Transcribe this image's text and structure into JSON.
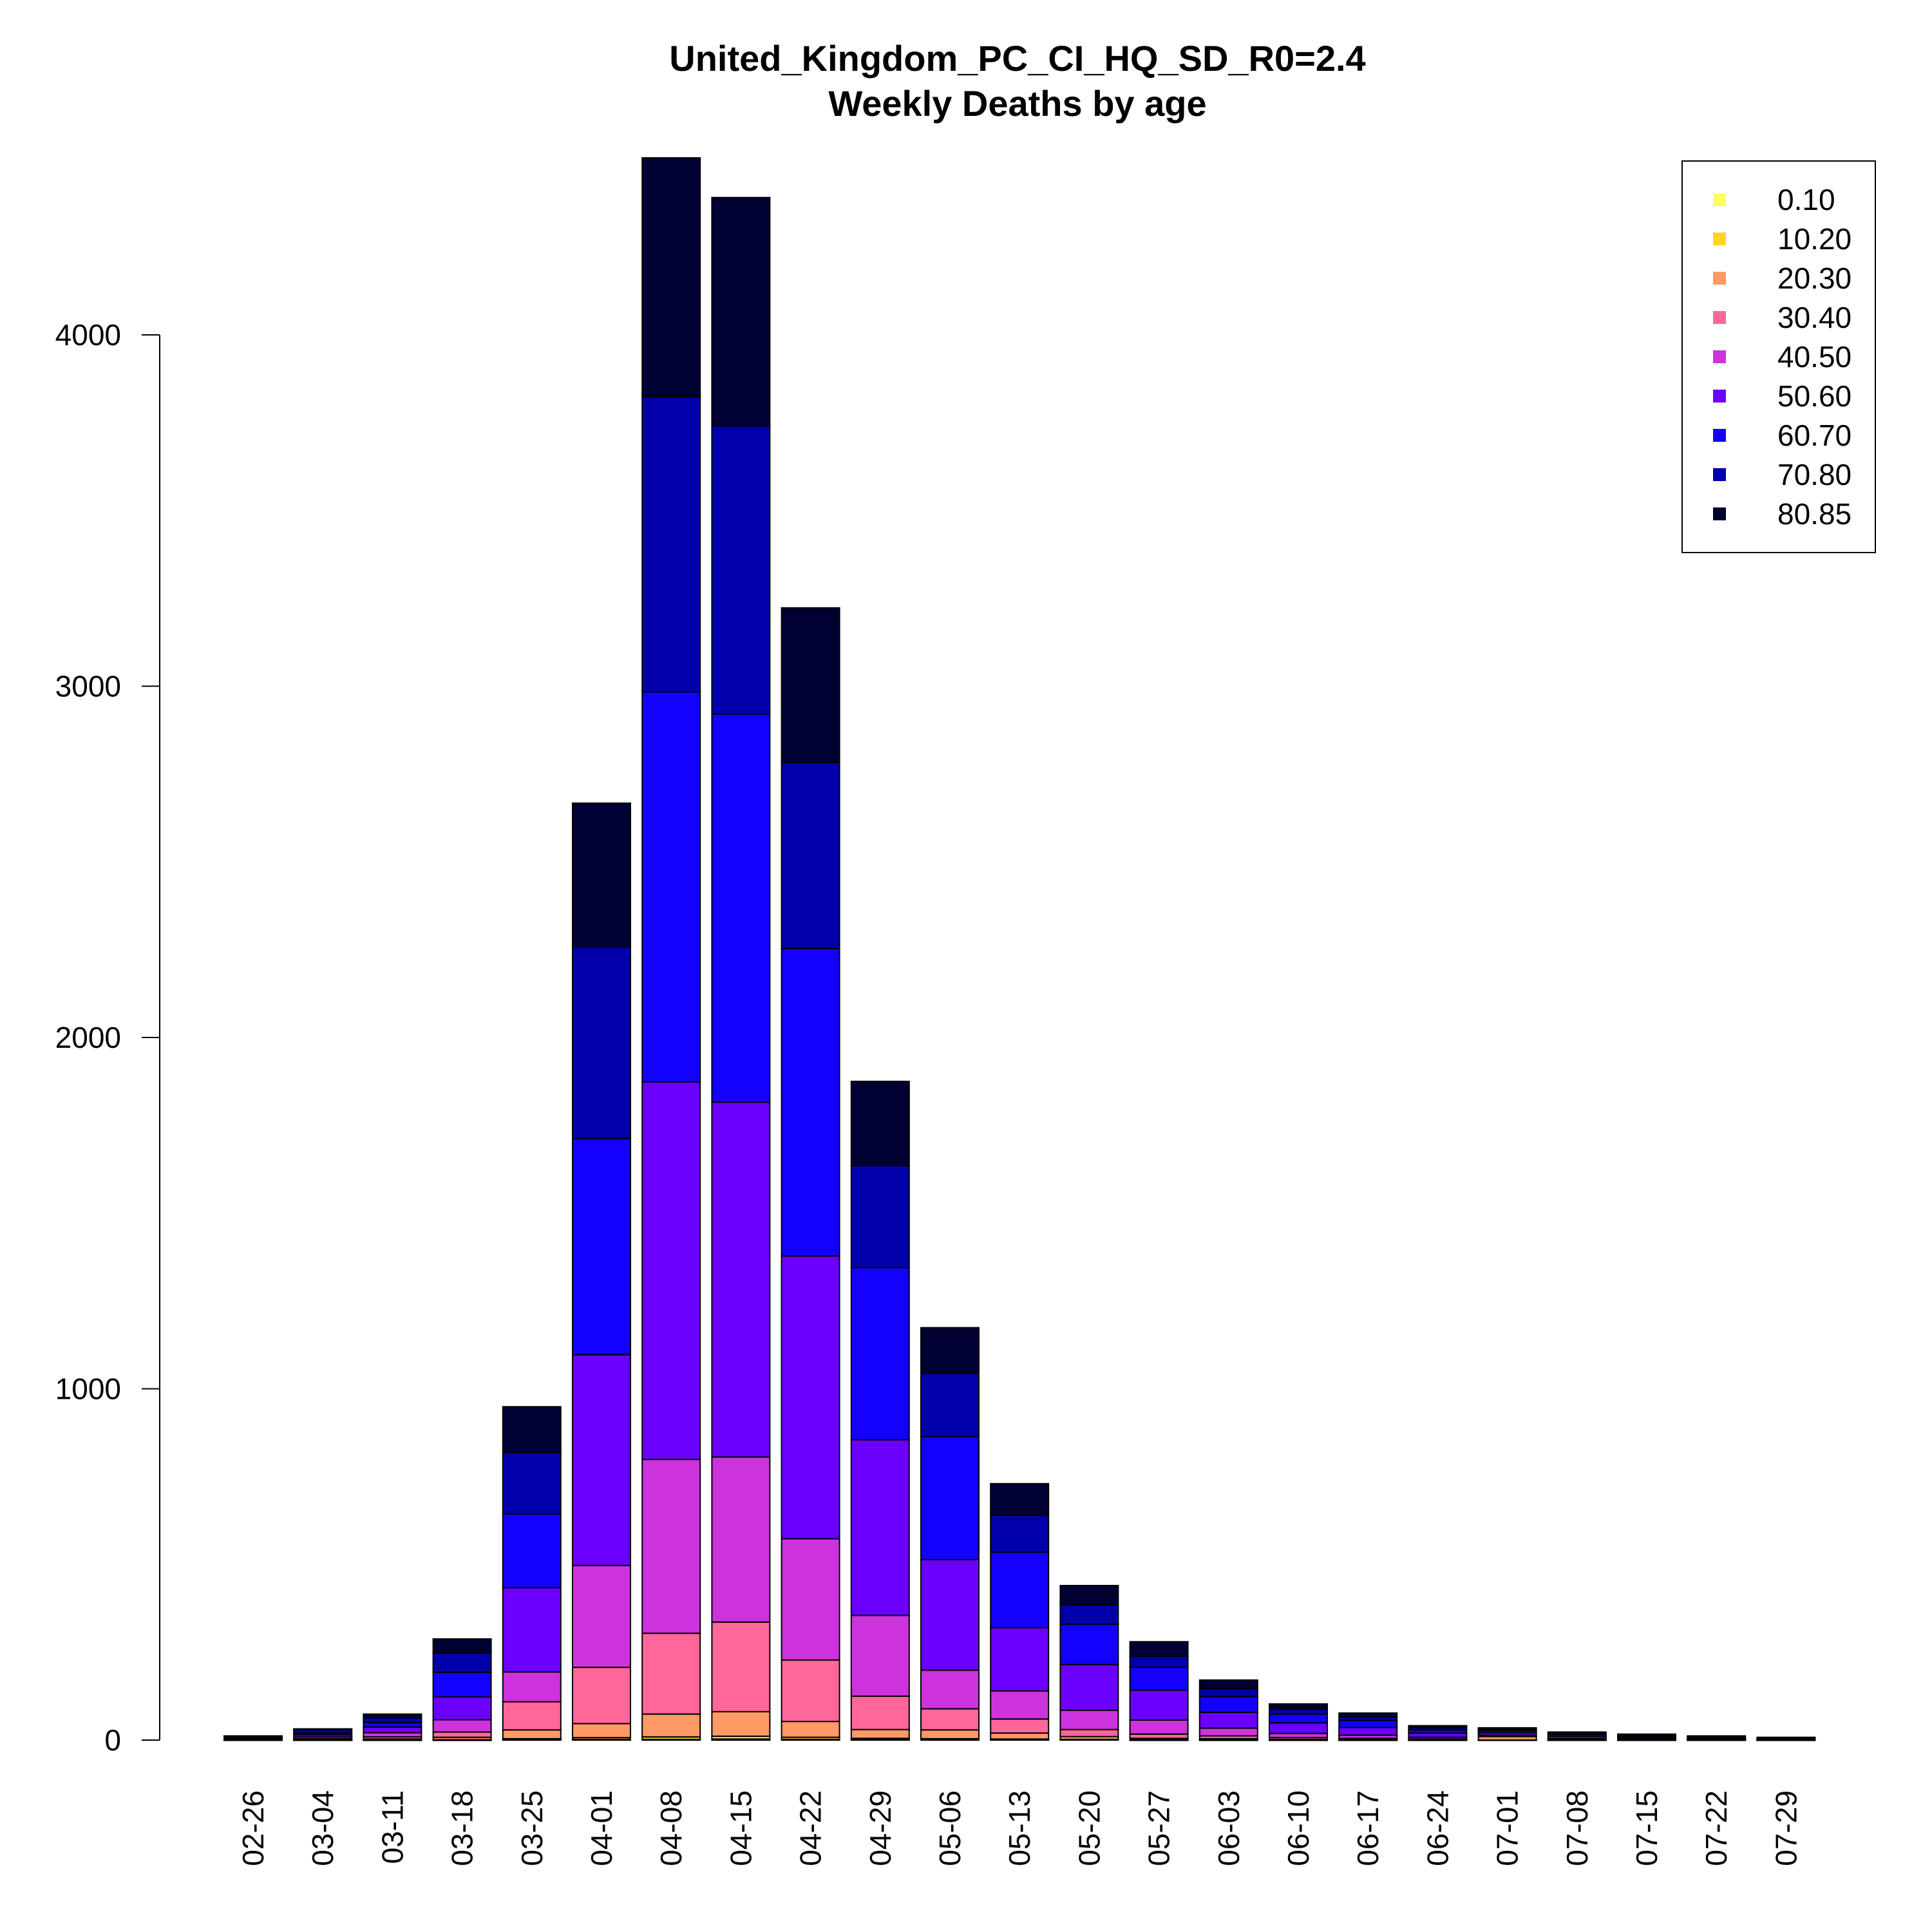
{
  "chart_data": {
    "type": "bar",
    "stacked": true,
    "title": "United_Kingdom_PC_CI_HQ_SD_R0=2.4",
    "subtitle": "Weekly Deaths by age",
    "xlabel": "",
    "ylabel": "",
    "ylim": [
      0,
      4500
    ],
    "yticks": [
      0,
      1000,
      2000,
      3000,
      4000
    ],
    "grid": false,
    "legend_position": "top-right",
    "categories": [
      "02-26",
      "03-04",
      "03-11",
      "03-18",
      "03-25",
      "04-01",
      "04-08",
      "04-15",
      "04-22",
      "04-29",
      "05-06",
      "05-13",
      "05-20",
      "05-27",
      "06-03",
      "06-10",
      "06-17",
      "06-24",
      "07-01",
      "07-08",
      "07-15",
      "07-22",
      "07-29"
    ],
    "series": [
      {
        "name": "0.10",
        "color": "#FFFF60",
        "values": [
          0,
          0,
          0,
          0,
          1,
          2,
          2,
          3,
          2,
          1,
          1,
          1,
          1,
          0,
          0,
          0,
          0,
          0,
          0,
          0,
          0,
          0,
          0
        ]
      },
      {
        "name": "10.20",
        "color": "#FFD426",
        "values": [
          0,
          0,
          0,
          1,
          3,
          5,
          7,
          8,
          6,
          4,
          3,
          2,
          1,
          1,
          1,
          0,
          0,
          0,
          0,
          0,
          0,
          0,
          0
        ]
      },
      {
        "name": "20.30",
        "color": "#FF9966",
        "values": [
          0,
          1,
          3,
          7,
          25,
          40,
          65,
          70,
          45,
          25,
          25,
          17,
          8,
          4,
          3,
          2,
          1,
          1,
          10,
          0,
          0,
          0,
          0
        ]
      },
      {
        "name": "30.40",
        "color": "#FF6699",
        "values": [
          1,
          3,
          6,
          15,
          80,
          160,
          230,
          255,
          175,
          95,
          60,
          40,
          20,
          12,
          8,
          5,
          4,
          2,
          1,
          2,
          1,
          1,
          0
        ]
      },
      {
        "name": "40.50",
        "color": "#CC33DD",
        "values": [
          2,
          5,
          12,
          35,
          85,
          290,
          495,
          470,
          345,
          230,
          110,
          80,
          55,
          40,
          22,
          12,
          9,
          5,
          3,
          3,
          2,
          1,
          1
        ]
      },
      {
        "name": "50.60",
        "color": "#6B00FF",
        "values": [
          3,
          6,
          16,
          65,
          240,
          600,
          1075,
          1010,
          805,
          500,
          315,
          180,
          130,
          85,
          45,
          30,
          22,
          12,
          7,
          6,
          3,
          2,
          1
        ]
      },
      {
        "name": "60.70",
        "color": "#1400FF",
        "values": [
          2,
          5,
          13,
          70,
          210,
          615,
          1110,
          1105,
          875,
          490,
          350,
          215,
          115,
          65,
          45,
          25,
          20,
          9,
          6,
          5,
          4,
          2,
          1
        ]
      },
      {
        "name": "70.80",
        "color": "#0000AA",
        "values": [
          2,
          10,
          14,
          55,
          175,
          545,
          840,
          820,
          530,
          290,
          180,
          105,
          55,
          32,
          22,
          14,
          10,
          6,
          4,
          3,
          2,
          1,
          1
        ]
      },
      {
        "name": "80.85",
        "color": "#000033",
        "values": [
          2,
          2,
          10,
          40,
          130,
          410,
          680,
          650,
          440,
          240,
          130,
          90,
          55,
          41,
          25,
          15,
          11,
          6,
          4,
          4,
          5,
          5,
          4
        ]
      }
    ]
  }
}
